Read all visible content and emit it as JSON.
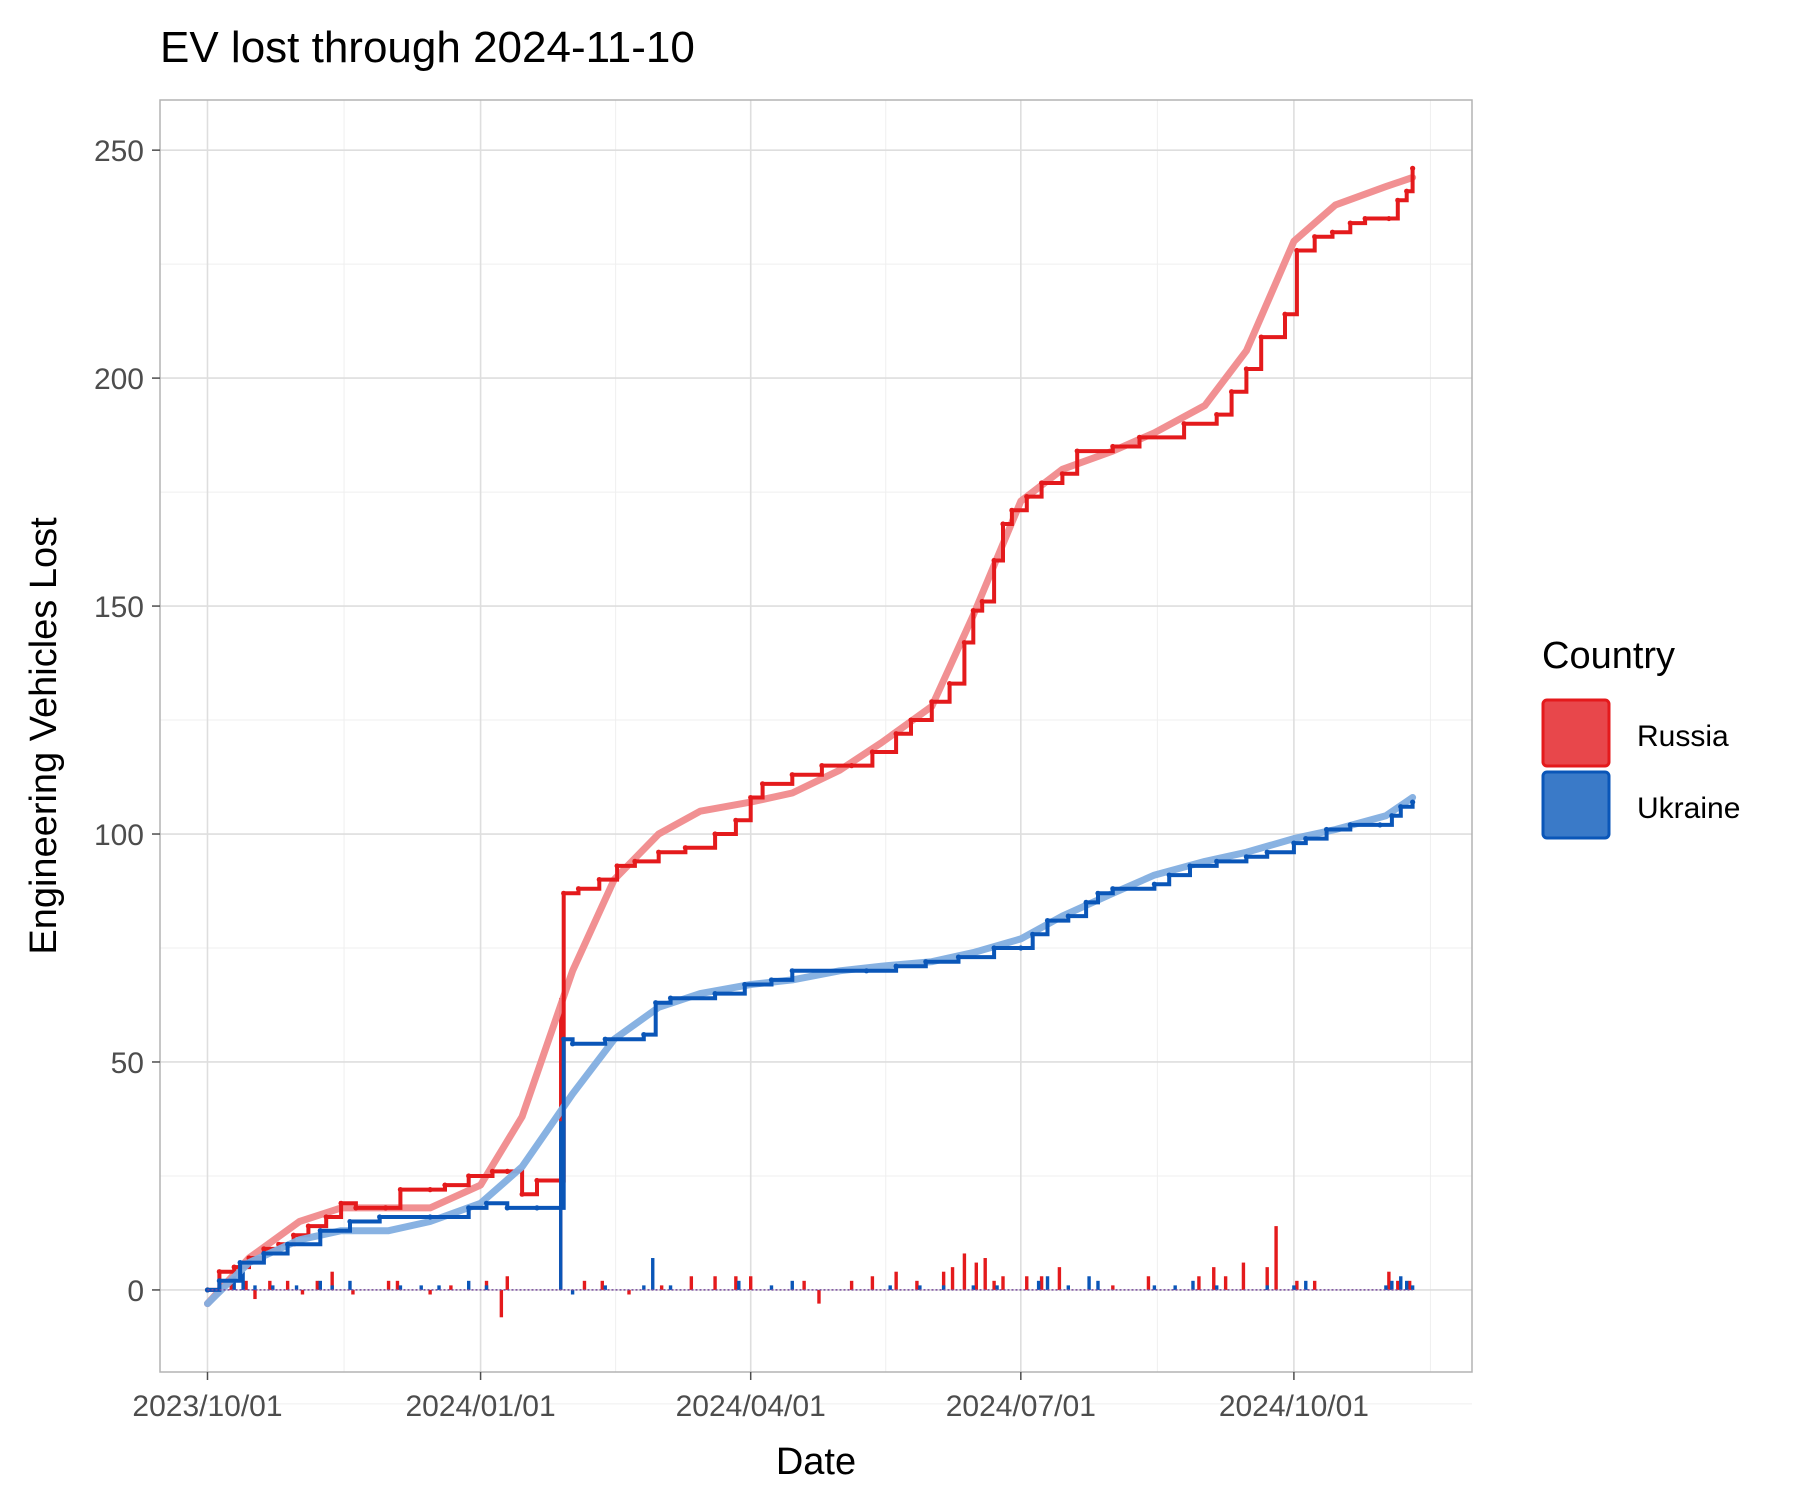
{
  "chart_data": {
    "type": "line",
    "title": "EV lost through 2024-11-10",
    "xlabel": "Date",
    "ylabel": "Engineering Vehicles Lost",
    "x_ticks": [
      "2023/10/01",
      "2024/01/01",
      "2024/04/01",
      "2024/07/01",
      "2024/10/01"
    ],
    "y_ticks": [
      0,
      50,
      100,
      150,
      200,
      250
    ],
    "xlim": [
      "2023-09-15",
      "2024-11-30"
    ],
    "ylim": [
      -18,
      261
    ],
    "grid": true,
    "legend": {
      "title": "Country",
      "position": "right"
    },
    "series": [
      {
        "name": "Russia",
        "color": "#e41a1c",
        "smooth_color": "#f08a8c",
        "cumulative": [
          [
            "2023-10-01",
            0
          ],
          [
            "2023-10-05",
            4
          ],
          [
            "2023-10-10",
            5
          ],
          [
            "2023-10-15",
            7
          ],
          [
            "2023-10-20",
            9
          ],
          [
            "2023-10-25",
            10
          ],
          [
            "2023-10-30",
            12
          ],
          [
            "2023-11-04",
            14
          ],
          [
            "2023-11-10",
            16
          ],
          [
            "2023-11-15",
            19
          ],
          [
            "2023-11-20",
            18
          ],
          [
            "2023-11-30",
            18
          ],
          [
            "2023-12-05",
            22
          ],
          [
            "2023-12-15",
            22
          ],
          [
            "2023-12-20",
            23
          ],
          [
            "2023-12-28",
            25
          ],
          [
            "2024-01-05",
            26
          ],
          [
            "2024-01-10",
            26
          ],
          [
            "2024-01-15",
            21
          ],
          [
            "2024-01-20",
            24
          ],
          [
            "2024-01-28",
            24
          ],
          [
            "2024-01-29",
            87
          ],
          [
            "2024-02-03",
            88
          ],
          [
            "2024-02-10",
            90
          ],
          [
            "2024-02-16",
            93
          ],
          [
            "2024-02-22",
            94
          ],
          [
            "2024-03-01",
            96
          ],
          [
            "2024-03-10",
            97
          ],
          [
            "2024-03-20",
            100
          ],
          [
            "2024-03-27",
            103
          ],
          [
            "2024-04-01",
            108
          ],
          [
            "2024-04-05",
            111
          ],
          [
            "2024-04-15",
            113
          ],
          [
            "2024-04-25",
            115
          ],
          [
            "2024-05-05",
            115
          ],
          [
            "2024-05-12",
            118
          ],
          [
            "2024-05-20",
            122
          ],
          [
            "2024-05-25",
            125
          ],
          [
            "2024-06-01",
            129
          ],
          [
            "2024-06-07",
            133
          ],
          [
            "2024-06-12",
            142
          ],
          [
            "2024-06-15",
            149
          ],
          [
            "2024-06-18",
            151
          ],
          [
            "2024-06-22",
            160
          ],
          [
            "2024-06-25",
            168
          ],
          [
            "2024-06-28",
            171
          ],
          [
            "2024-07-03",
            174
          ],
          [
            "2024-07-08",
            177
          ],
          [
            "2024-07-15",
            179
          ],
          [
            "2024-07-20",
            184
          ],
          [
            "2024-08-01",
            185
          ],
          [
            "2024-08-10",
            187
          ],
          [
            "2024-08-25",
            190
          ],
          [
            "2024-09-05",
            192
          ],
          [
            "2024-09-10",
            197
          ],
          [
            "2024-09-15",
            202
          ],
          [
            "2024-09-20",
            209
          ],
          [
            "2024-09-28",
            214
          ],
          [
            "2024-10-02",
            228
          ],
          [
            "2024-10-08",
            231
          ],
          [
            "2024-10-14",
            232
          ],
          [
            "2024-10-20",
            234
          ],
          [
            "2024-10-25",
            235
          ],
          [
            "2024-11-02",
            235
          ],
          [
            "2024-11-05",
            239
          ],
          [
            "2024-11-08",
            241
          ],
          [
            "2024-11-10",
            246
          ]
        ],
        "smooth": [
          [
            "2023-10-01",
            -3
          ],
          [
            "2023-10-15",
            7
          ],
          [
            "2023-11-01",
            15
          ],
          [
            "2023-11-15",
            18
          ],
          [
            "2023-12-01",
            18
          ],
          [
            "2023-12-15",
            18
          ],
          [
            "2024-01-01",
            23
          ],
          [
            "2024-01-15",
            38
          ],
          [
            "2024-02-01",
            70
          ],
          [
            "2024-02-15",
            90
          ],
          [
            "2024-03-01",
            100
          ],
          [
            "2024-03-15",
            105
          ],
          [
            "2024-04-01",
            107
          ],
          [
            "2024-04-15",
            109
          ],
          [
            "2024-05-01",
            114
          ],
          [
            "2024-05-15",
            120
          ],
          [
            "2024-06-01",
            128
          ],
          [
            "2024-06-15",
            148
          ],
          [
            "2024-07-01",
            173
          ],
          [
            "2024-07-15",
            180
          ],
          [
            "2024-08-01",
            184
          ],
          [
            "2024-08-15",
            188
          ],
          [
            "2024-09-01",
            194
          ],
          [
            "2024-09-15",
            206
          ],
          [
            "2024-10-01",
            230
          ],
          [
            "2024-10-15",
            238
          ],
          [
            "2024-11-01",
            242
          ],
          [
            "2024-11-10",
            244
          ]
        ],
        "daily": [
          [
            "2023-10-05",
            4
          ],
          [
            "2023-10-09",
            2
          ],
          [
            "2023-10-14",
            2
          ],
          [
            "2023-10-17",
            -2
          ],
          [
            "2023-10-22",
            2
          ],
          [
            "2023-10-28",
            2
          ],
          [
            "2023-11-02",
            -1
          ],
          [
            "2023-11-07",
            2
          ],
          [
            "2023-11-12",
            4
          ],
          [
            "2023-11-19",
            -1
          ],
          [
            "2023-12-01",
            2
          ],
          [
            "2023-12-04",
            2
          ],
          [
            "2023-12-15",
            -1
          ],
          [
            "2023-12-22",
            1
          ],
          [
            "2024-01-03",
            2
          ],
          [
            "2024-01-08",
            -6
          ],
          [
            "2024-01-10",
            3
          ],
          [
            "2024-01-28",
            64
          ],
          [
            "2024-02-05",
            2
          ],
          [
            "2024-02-11",
            2
          ],
          [
            "2024-02-20",
            -1
          ],
          [
            "2024-03-02",
            1
          ],
          [
            "2024-03-12",
            3
          ],
          [
            "2024-03-20",
            3
          ],
          [
            "2024-03-27",
            3
          ],
          [
            "2024-04-01",
            3
          ],
          [
            "2024-04-19",
            2
          ],
          [
            "2024-04-24",
            -3
          ],
          [
            "2024-05-05",
            2
          ],
          [
            "2024-05-12",
            3
          ],
          [
            "2024-05-20",
            4
          ],
          [
            "2024-05-27",
            2
          ],
          [
            "2024-06-05",
            4
          ],
          [
            "2024-06-08",
            5
          ],
          [
            "2024-06-12",
            8
          ],
          [
            "2024-06-16",
            6
          ],
          [
            "2024-06-19",
            7
          ],
          [
            "2024-06-22",
            2
          ],
          [
            "2024-06-25",
            3
          ],
          [
            "2024-07-03",
            3
          ],
          [
            "2024-07-08",
            3
          ],
          [
            "2024-07-14",
            5
          ],
          [
            "2024-08-01",
            1
          ],
          [
            "2024-08-13",
            3
          ],
          [
            "2024-08-30",
            3
          ],
          [
            "2024-09-04",
            5
          ],
          [
            "2024-09-08",
            3
          ],
          [
            "2024-09-14",
            6
          ],
          [
            "2024-09-22",
            5
          ],
          [
            "2024-09-25",
            14
          ],
          [
            "2024-10-02",
            2
          ],
          [
            "2024-10-08",
            2
          ],
          [
            "2024-11-02",
            4
          ],
          [
            "2024-11-05",
            2
          ],
          [
            "2024-11-09",
            2
          ]
        ]
      },
      {
        "name": "Ukraine",
        "color": "#0a56b8",
        "smooth_color": "#82aee0",
        "cumulative": [
          [
            "2023-10-01",
            0
          ],
          [
            "2023-10-05",
            2
          ],
          [
            "2023-10-12",
            6
          ],
          [
            "2023-10-20",
            8
          ],
          [
            "2023-10-28",
            10
          ],
          [
            "2023-11-08",
            13
          ],
          [
            "2023-11-18",
            15
          ],
          [
            "2023-11-28",
            16
          ],
          [
            "2023-12-15",
            16
          ],
          [
            "2023-12-28",
            18
          ],
          [
            "2024-01-03",
            19
          ],
          [
            "2024-01-10",
            18
          ],
          [
            "2024-01-20",
            18
          ],
          [
            "2024-01-28",
            18
          ],
          [
            "2024-01-29",
            55
          ],
          [
            "2024-02-01",
            54
          ],
          [
            "2024-02-12",
            55
          ],
          [
            "2024-02-25",
            56
          ],
          [
            "2024-02-29",
            63
          ],
          [
            "2024-03-05",
            64
          ],
          [
            "2024-03-20",
            65
          ],
          [
            "2024-03-30",
            67
          ],
          [
            "2024-04-08",
            68
          ],
          [
            "2024-04-15",
            70
          ],
          [
            "2024-05-10",
            70
          ],
          [
            "2024-05-20",
            71
          ],
          [
            "2024-05-30",
            72
          ],
          [
            "2024-06-10",
            73
          ],
          [
            "2024-06-22",
            75
          ],
          [
            "2024-07-01",
            75
          ],
          [
            "2024-07-05",
            78
          ],
          [
            "2024-07-10",
            81
          ],
          [
            "2024-07-17",
            82
          ],
          [
            "2024-07-23",
            85
          ],
          [
            "2024-07-27",
            87
          ],
          [
            "2024-08-01",
            88
          ],
          [
            "2024-08-15",
            89
          ],
          [
            "2024-08-20",
            91
          ],
          [
            "2024-08-27",
            93
          ],
          [
            "2024-09-05",
            94
          ],
          [
            "2024-09-15",
            95
          ],
          [
            "2024-09-22",
            96
          ],
          [
            "2024-10-01",
            98
          ],
          [
            "2024-10-05",
            99
          ],
          [
            "2024-10-12",
            101
          ],
          [
            "2024-10-20",
            102
          ],
          [
            "2024-10-30",
            102
          ],
          [
            "2024-11-03",
            104
          ],
          [
            "2024-11-06",
            106
          ],
          [
            "2024-11-10",
            107
          ]
        ],
        "smooth": [
          [
            "2023-10-01",
            -3
          ],
          [
            "2023-10-15",
            6
          ],
          [
            "2023-11-01",
            11
          ],
          [
            "2023-11-15",
            13
          ],
          [
            "2023-12-01",
            13
          ],
          [
            "2023-12-15",
            15
          ],
          [
            "2024-01-01",
            19
          ],
          [
            "2024-01-15",
            27
          ],
          [
            "2024-02-01",
            43
          ],
          [
            "2024-02-15",
            55
          ],
          [
            "2024-03-01",
            62
          ],
          [
            "2024-03-15",
            65
          ],
          [
            "2024-04-01",
            67
          ],
          [
            "2024-04-15",
            68
          ],
          [
            "2024-05-01",
            70
          ],
          [
            "2024-05-15",
            71
          ],
          [
            "2024-06-01",
            72
          ],
          [
            "2024-06-15",
            74
          ],
          [
            "2024-07-01",
            77
          ],
          [
            "2024-07-15",
            82
          ],
          [
            "2024-08-01",
            87
          ],
          [
            "2024-08-15",
            91
          ],
          [
            "2024-09-01",
            94
          ],
          [
            "2024-09-15",
            96
          ],
          [
            "2024-10-01",
            99
          ],
          [
            "2024-10-15",
            101
          ],
          [
            "2024-11-01",
            104
          ],
          [
            "2024-11-10",
            108
          ]
        ],
        "daily": [
          [
            "2023-10-05",
            2
          ],
          [
            "2023-10-10",
            3
          ],
          [
            "2023-10-13",
            4
          ],
          [
            "2023-10-17",
            1
          ],
          [
            "2023-10-23",
            1
          ],
          [
            "2023-10-31",
            1
          ],
          [
            "2023-11-08",
            2
          ],
          [
            "2023-11-12",
            1
          ],
          [
            "2023-11-18",
            2
          ],
          [
            "2023-12-05",
            1
          ],
          [
            "2023-12-12",
            1
          ],
          [
            "2023-12-18",
            1
          ],
          [
            "2023-12-28",
            2
          ],
          [
            "2024-01-03",
            1
          ],
          [
            "2024-01-28",
            37
          ],
          [
            "2024-02-01",
            -1
          ],
          [
            "2024-02-12",
            1
          ],
          [
            "2024-02-25",
            1
          ],
          [
            "2024-02-28",
            7
          ],
          [
            "2024-03-05",
            1
          ],
          [
            "2024-03-28",
            2
          ],
          [
            "2024-04-08",
            1
          ],
          [
            "2024-04-15",
            2
          ],
          [
            "2024-05-18",
            1
          ],
          [
            "2024-05-28",
            1
          ],
          [
            "2024-06-05",
            1
          ],
          [
            "2024-06-15",
            1
          ],
          [
            "2024-06-23",
            1
          ],
          [
            "2024-07-07",
            2
          ],
          [
            "2024-07-10",
            3
          ],
          [
            "2024-07-17",
            1
          ],
          [
            "2024-07-24",
            3
          ],
          [
            "2024-07-27",
            2
          ],
          [
            "2024-08-15",
            1
          ],
          [
            "2024-08-22",
            1
          ],
          [
            "2024-08-28",
            2
          ],
          [
            "2024-09-05",
            1
          ],
          [
            "2024-09-22",
            1
          ],
          [
            "2024-10-01",
            1
          ],
          [
            "2024-10-05",
            2
          ],
          [
            "2024-11-01",
            1
          ],
          [
            "2024-11-03",
            2
          ],
          [
            "2024-11-06",
            3
          ],
          [
            "2024-11-08",
            2
          ],
          [
            "2024-11-10",
            1
          ]
        ]
      }
    ]
  }
}
